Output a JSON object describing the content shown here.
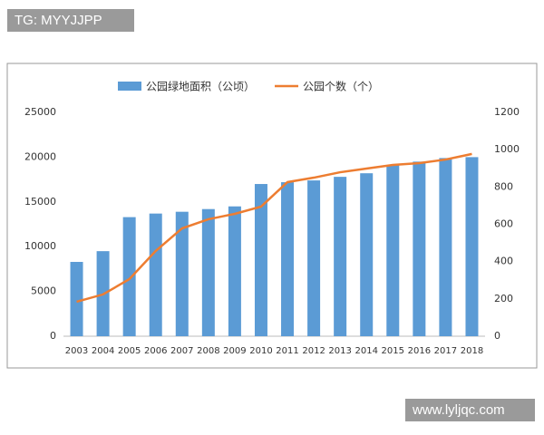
{
  "watermark": "TG: MYYJJPP",
  "site": "www.lyljqc.com",
  "chart_data": {
    "type": "bar_line",
    "categories": [
      "2003",
      "2004",
      "2005",
      "2006",
      "2007",
      "2008",
      "2009",
      "2010",
      "2011",
      "2012",
      "2013",
      "2014",
      "2015",
      "2016",
      "2017",
      "2018"
    ],
    "series": [
      {
        "name": "公园绿地面积（公顷）",
        "type": "bar",
        "color": "#5b9bd5",
        "values": [
          8300,
          9500,
          13300,
          13700,
          13900,
          14200,
          14500,
          17000,
          17200,
          17400,
          17800,
          18200,
          19100,
          19500,
          19900,
          20000
        ]
      },
      {
        "name": "公园个数（个）",
        "type": "line",
        "axis": "y2",
        "color": "#ed7d31",
        "values": [
          185,
          224,
          306,
          457,
          578,
          627,
          656,
          695,
          826,
          850,
          879,
          899,
          918,
          928,
          947,
          977
        ]
      }
    ],
    "ylim": [
      0,
      25000
    ],
    "yticks": [
      0,
      5000,
      10000,
      15000,
      20000,
      25000
    ],
    "y2lim": [
      0,
      1200
    ],
    "y2ticks": [
      0,
      200,
      400,
      600,
      800,
      1000,
      1200
    ],
    "grid": false,
    "legend": "top"
  }
}
